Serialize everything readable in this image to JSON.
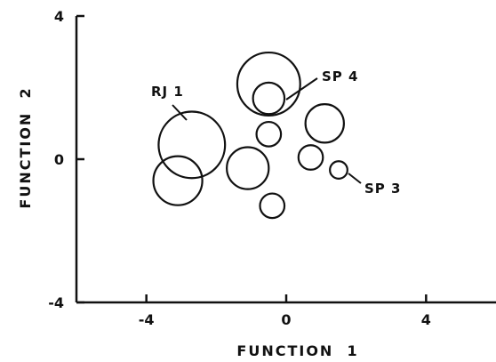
{
  "chart_data": {
    "type": "scatter",
    "title": "",
    "xlabel": "FUNCTION  1",
    "ylabel": "FUNCTION  2",
    "xlim": [
      -6,
      6
    ],
    "ylim": [
      -4,
      4
    ],
    "x_ticks": [
      {
        "value": -4,
        "label": "-4"
      },
      {
        "value": 0,
        "label": "0"
      },
      {
        "value": 4,
        "label": "4"
      }
    ],
    "y_ticks": [
      {
        "value": 4,
        "label": "4"
      },
      {
        "value": 0,
        "label": "0"
      },
      {
        "value": -4,
        "label": "-4"
      }
    ],
    "grid": false,
    "legend": "none",
    "marker": "open-circle",
    "color": "#111111",
    "points": [
      {
        "x": -0.5,
        "y": 2.1,
        "size": 0.9
      },
      {
        "x": -0.5,
        "y": 1.7,
        "size": 0.45
      },
      {
        "x": -2.7,
        "y": 0.4,
        "size": 0.95
      },
      {
        "x": -3.1,
        "y": -0.6,
        "size": 0.7
      },
      {
        "x": -1.1,
        "y": -0.25,
        "size": 0.6
      },
      {
        "x": -0.5,
        "y": 0.7,
        "size": 0.35
      },
      {
        "x": 1.1,
        "y": 1.0,
        "size": 0.55
      },
      {
        "x": 0.7,
        "y": 0.05,
        "size": 0.35
      },
      {
        "x": 1.5,
        "y": -0.3,
        "size": 0.25
      },
      {
        "x": -0.4,
        "y": -1.3,
        "size": 0.35
      }
    ],
    "annotations": [
      {
        "label": "RJ 1",
        "point_index": 2
      },
      {
        "label": "SP 4",
        "point_index": 0
      },
      {
        "label": "SP 3",
        "point_index": 8
      }
    ]
  }
}
